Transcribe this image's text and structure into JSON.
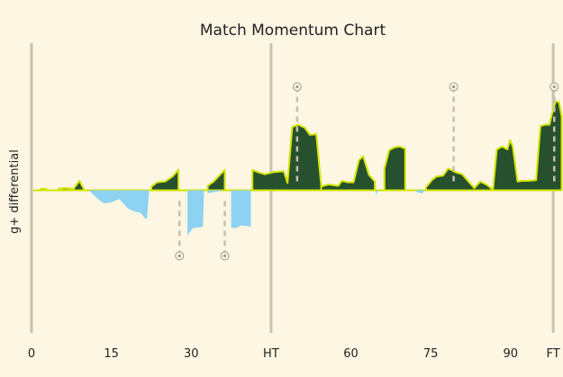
{
  "chart_data": {
    "type": "area",
    "title": "Match Momentum Chart",
    "xlabel": "",
    "ylabel": "g+ differential",
    "x_ticks": [
      {
        "label": "0",
        "minute": 0
      },
      {
        "label": "15",
        "minute": 15
      },
      {
        "label": "30",
        "minute": 30
      },
      {
        "label": "HT",
        "minute": 45,
        "vline": true
      },
      {
        "label": "60",
        "minute": 60
      },
      {
        "label": "75",
        "minute": 75
      },
      {
        "label": "90",
        "minute": 90
      },
      {
        "label": "FT",
        "minute": 98,
        "vline": true
      }
    ],
    "start_vline_minute": 0,
    "xlim": [
      0,
      99
    ],
    "ylim": [
      -1.0,
      1.0
    ],
    "colors": {
      "positive_fill": "#27502e",
      "positive_line": "#d2e400",
      "negative_fill": "#8ed2f2",
      "background": "#fdf6e3",
      "vline": "#c9c2ae",
      "event_line": "#c6bfad"
    },
    "segments": [
      {
        "team": "home",
        "points": [
          [
            1.7,
            0
          ],
          [
            1.7,
            0.02
          ],
          [
            2.8,
            0.02
          ],
          [
            2.8,
            0
          ]
        ]
      },
      {
        "team": "home",
        "points": [
          [
            5.1,
            0
          ],
          [
            5.1,
            0.02
          ],
          [
            6.3,
            0.03
          ],
          [
            7.9,
            0.02
          ],
          [
            9,
            0.13
          ],
          [
            9.8,
            0.02
          ],
          [
            9.8,
            0
          ]
        ]
      },
      {
        "team": "away",
        "points": [
          [
            10.8,
            0
          ],
          [
            11.9,
            -0.08
          ],
          [
            13,
            -0.15
          ],
          [
            13.7,
            -0.18
          ],
          [
            15.2,
            -0.16
          ],
          [
            16.5,
            -0.12
          ],
          [
            18.1,
            -0.25
          ],
          [
            19.3,
            -0.29
          ],
          [
            20.5,
            -0.31
          ],
          [
            21.4,
            -0.39
          ],
          [
            21.7,
            -0.39
          ],
          [
            22.1,
            0
          ]
        ]
      },
      {
        "team": "home",
        "points": [
          [
            22.5,
            0
          ],
          [
            22.5,
            0.05
          ],
          [
            23.6,
            0.11
          ],
          [
            25.1,
            0.12
          ],
          [
            26.5,
            0.19
          ],
          [
            27.6,
            0.28
          ],
          [
            27.6,
            0
          ]
        ]
      },
      {
        "team": "home",
        "points": [
          [
            33.1,
            0
          ],
          [
            33.1,
            0.06
          ],
          [
            34.2,
            0.12
          ],
          [
            36.3,
            0.28
          ],
          [
            36.3,
            0
          ]
        ]
      },
      {
        "team": "away",
        "points": [
          [
            33.1,
            0
          ],
          [
            33.1,
            -0.04
          ],
          [
            36.3,
            0
          ]
        ]
      },
      {
        "team": "away",
        "points": [
          [
            29.3,
            0
          ],
          [
            29.3,
            -0.62
          ],
          [
            30.3,
            -0.52
          ],
          [
            31.4,
            -0.51
          ],
          [
            32.2,
            -0.5
          ],
          [
            32.4,
            -0.01
          ],
          [
            32.4,
            0
          ]
        ]
      },
      {
        "team": "away",
        "points": [
          [
            37.5,
            0
          ],
          [
            37.5,
            -0.51
          ],
          [
            38.4,
            -0.52
          ],
          [
            39.4,
            -0.48
          ],
          [
            41.2,
            -0.5
          ],
          [
            41.2,
            0
          ]
        ]
      },
      {
        "team": "home",
        "points": [
          [
            41.5,
            0
          ],
          [
            41.5,
            0.28
          ],
          [
            42.5,
            0.25
          ],
          [
            43.8,
            0.22
          ],
          [
            45.5,
            0.25
          ],
          [
            47.4,
            0.26
          ],
          [
            48.1,
            0.1
          ],
          [
            49,
            0.87
          ],
          [
            50.1,
            0.9
          ],
          [
            51.3,
            0.86
          ],
          [
            52.3,
            0.76
          ],
          [
            53.5,
            0.77
          ],
          [
            54.4,
            0.07
          ],
          [
            54.4,
            0
          ]
        ]
      },
      {
        "team": "home",
        "points": [
          [
            54.4,
            0
          ],
          [
            54.4,
            0.05
          ],
          [
            55.8,
            0.08
          ],
          [
            57.6,
            0.06
          ],
          [
            58.3,
            0.13
          ],
          [
            59.4,
            0.11
          ],
          [
            60.5,
            0.11
          ],
          [
            61.5,
            0.41
          ],
          [
            62.3,
            0.47
          ],
          [
            63.4,
            0.21
          ],
          [
            64.5,
            0.12
          ],
          [
            64.5,
            0
          ]
        ]
      },
      {
        "team": "away",
        "points": [
          [
            64.7,
            0
          ],
          [
            64.7,
            -0.07
          ],
          [
            65.1,
            0
          ]
        ]
      },
      {
        "team": "home",
        "points": [
          [
            66.3,
            0
          ],
          [
            66.3,
            0.3
          ],
          [
            67.2,
            0.55
          ],
          [
            68.2,
            0.59
          ],
          [
            69.2,
            0.6
          ],
          [
            70.2,
            0.57
          ],
          [
            70.2,
            0
          ]
        ]
      },
      {
        "team": "away",
        "points": [
          [
            72,
            0
          ],
          [
            72.5,
            -0.03
          ],
          [
            73.4,
            -0.04
          ],
          [
            74,
            0
          ]
        ]
      },
      {
        "team": "home",
        "points": [
          [
            74.1,
            0
          ],
          [
            74.1,
            0.04
          ],
          [
            75.2,
            0.14
          ],
          [
            76.1,
            0.19
          ],
          [
            77.3,
            0.2
          ],
          [
            78.3,
            0.3
          ],
          [
            79.6,
            0.25
          ],
          [
            80.9,
            0.22
          ],
          [
            82.1,
            0.12
          ],
          [
            83.2,
            0.03
          ],
          [
            84.3,
            0.12
          ],
          [
            85.4,
            0.08
          ],
          [
            86.7,
            0.01
          ],
          [
            87.4,
            0.56
          ],
          [
            88.4,
            0.6
          ],
          [
            89.4,
            0.56
          ],
          [
            89.9,
            0.69
          ],
          [
            90.4,
            0.6
          ],
          [
            91.3,
            0.12
          ],
          [
            92.2,
            0.13
          ],
          [
            93.2,
            0.13
          ],
          [
            94.8,
            0.14
          ],
          [
            95.6,
            0.88
          ],
          [
            96.5,
            0.9
          ],
          [
            97.3,
            0.9
          ],
          [
            98,
            1.12
          ],
          [
            98.5,
            1.22
          ],
          [
            99.1,
            1.21
          ],
          [
            99.6,
            1.01
          ],
          [
            99.6,
            0
          ]
        ]
      }
    ],
    "events": [
      {
        "team": "home",
        "minute": 49.9,
        "value": 1.42
      },
      {
        "team": "away",
        "minute": 27.8,
        "value": -0.9
      },
      {
        "team": "away",
        "minute": 36.3,
        "value": -0.9
      },
      {
        "team": "home",
        "minute": 79.3,
        "value": 1.42
      },
      {
        "team": "home",
        "minute": 98.2,
        "value": 1.42
      }
    ]
  }
}
